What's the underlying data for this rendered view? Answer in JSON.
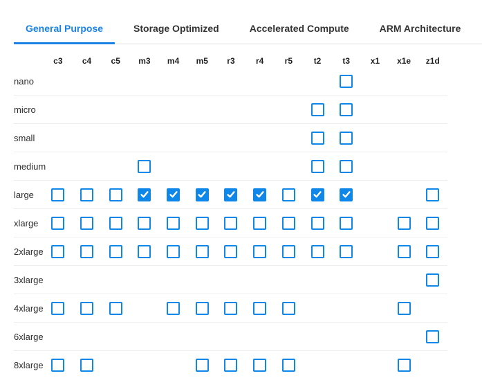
{
  "tabs": [
    {
      "label": "General Purpose",
      "active": true
    },
    {
      "label": "Storage Optimized",
      "active": false
    },
    {
      "label": "Accelerated Compute",
      "active": false
    },
    {
      "label": "ARM Architecture",
      "active": false
    }
  ],
  "matrix": {
    "columns": [
      "c3",
      "c4",
      "c5",
      "m3",
      "m4",
      "m5",
      "r3",
      "r4",
      "r5",
      "t2",
      "t3",
      "x1",
      "x1e",
      "z1d"
    ],
    "rows": [
      {
        "label": "nano",
        "cells": [
          "",
          "",
          "",
          "",
          "",
          "",
          "",
          "",
          "",
          "",
          "unchecked",
          "",
          "",
          ""
        ]
      },
      {
        "label": "micro",
        "cells": [
          "",
          "",
          "",
          "",
          "",
          "",
          "",
          "",
          "",
          "unchecked",
          "unchecked",
          "",
          "",
          ""
        ]
      },
      {
        "label": "small",
        "cells": [
          "",
          "",
          "",
          "",
          "",
          "",
          "",
          "",
          "",
          "unchecked",
          "unchecked",
          "",
          "",
          ""
        ]
      },
      {
        "label": "medium",
        "cells": [
          "",
          "",
          "",
          "unchecked",
          "",
          "",
          "",
          "",
          "",
          "unchecked",
          "unchecked",
          "",
          "",
          ""
        ]
      },
      {
        "label": "large",
        "cells": [
          "unchecked",
          "unchecked",
          "unchecked",
          "checked",
          "checked",
          "checked",
          "checked",
          "checked",
          "unchecked",
          "checked",
          "checked",
          "",
          "",
          "unchecked"
        ]
      },
      {
        "label": "xlarge",
        "cells": [
          "unchecked",
          "unchecked",
          "unchecked",
          "unchecked",
          "unchecked",
          "unchecked",
          "unchecked",
          "unchecked",
          "unchecked",
          "unchecked",
          "unchecked",
          "",
          "unchecked",
          "unchecked"
        ]
      },
      {
        "label": "2xlarge",
        "cells": [
          "unchecked",
          "unchecked",
          "unchecked",
          "unchecked",
          "unchecked",
          "unchecked",
          "unchecked",
          "unchecked",
          "unchecked",
          "unchecked",
          "unchecked",
          "",
          "unchecked",
          "unchecked"
        ]
      },
      {
        "label": "3xlarge",
        "cells": [
          "",
          "",
          "",
          "",
          "",
          "",
          "",
          "",
          "",
          "",
          "",
          "",
          "",
          "unchecked"
        ]
      },
      {
        "label": "4xlarge",
        "cells": [
          "unchecked",
          "unchecked",
          "unchecked",
          "",
          "unchecked",
          "unchecked",
          "unchecked",
          "unchecked",
          "unchecked",
          "",
          "",
          "",
          "unchecked",
          ""
        ]
      },
      {
        "label": "6xlarge",
        "cells": [
          "",
          "",
          "",
          "",
          "",
          "",
          "",
          "",
          "",
          "",
          "",
          "",
          "",
          "unchecked"
        ]
      },
      {
        "label": "8xlarge",
        "cells": [
          "unchecked",
          "unchecked",
          "",
          "",
          "",
          "unchecked",
          "unchecked",
          "unchecked",
          "unchecked",
          "",
          "",
          "",
          "unchecked",
          ""
        ]
      }
    ]
  },
  "colors": {
    "tab_blue": "#1a82e2",
    "checkbox_blue": "#0e87e9"
  }
}
